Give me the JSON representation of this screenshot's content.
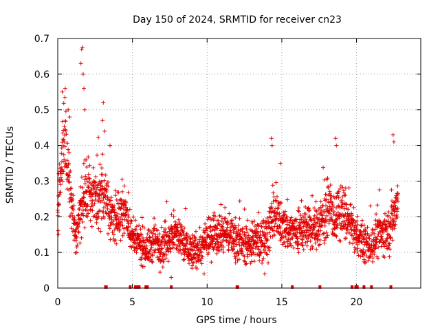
{
  "chart_data": {
    "type": "scatter",
    "title": "Day 150 of 2024, SRMTID for receiver cn23",
    "xlabel": "GPS time / hours",
    "ylabel": "SRMTID / TECUs",
    "xlim": [
      0,
      24.3
    ],
    "ylim": [
      0,
      0.7
    ],
    "x_ticks": [
      0,
      5,
      10,
      15,
      20
    ],
    "x_tick_labels": [
      "0",
      "5",
      "10",
      "15",
      "20"
    ],
    "y_ticks": [
      0,
      0.1,
      0.2,
      0.3,
      0.4,
      0.5,
      0.6,
      0.7
    ],
    "y_tick_labels": [
      "0",
      "0.1",
      "0.2",
      "0.3",
      "0.4",
      "0.5",
      "0.6",
      "0.7"
    ],
    "grid": true,
    "marker": "+",
    "color": "#e00000",
    "series": [
      {
        "name": "SRMTID",
        "envelope_hours": [
          0,
          0.25,
          0.5,
          0.75,
          1.0,
          1.25,
          1.5,
          1.75,
          2.0,
          2.5,
          3.0,
          3.25,
          3.5,
          4.0,
          4.5,
          5.0,
          5.5,
          6.0,
          6.5,
          7.0,
          7.5,
          8.0,
          8.5,
          9.0,
          9.5,
          10.0,
          10.5,
          11.0,
          11.5,
          12.0,
          12.5,
          13.0,
          13.5,
          14.0,
          14.25,
          14.5,
          15.0,
          15.5,
          16.0,
          16.5,
          17.0,
          17.5,
          18.0,
          18.5,
          18.75,
          19.0,
          19.5,
          20.0,
          20.5,
          21.0,
          21.5,
          22.0,
          22.5,
          22.75
        ],
        "typical": [
          0.2,
          0.35,
          0.4,
          0.3,
          0.22,
          0.15,
          0.2,
          0.26,
          0.27,
          0.26,
          0.25,
          0.27,
          0.2,
          0.2,
          0.22,
          0.14,
          0.12,
          0.11,
          0.13,
          0.12,
          0.14,
          0.15,
          0.12,
          0.1,
          0.11,
          0.13,
          0.16,
          0.16,
          0.15,
          0.14,
          0.12,
          0.13,
          0.13,
          0.15,
          0.18,
          0.2,
          0.18,
          0.16,
          0.16,
          0.17,
          0.16,
          0.18,
          0.22,
          0.2,
          0.2,
          0.22,
          0.18,
          0.15,
          0.12,
          0.12,
          0.15,
          0.15,
          0.2,
          0.25
        ],
        "spread": [
          0.05,
          0.08,
          0.09,
          0.07,
          0.06,
          0.05,
          0.07,
          0.08,
          0.07,
          0.06,
          0.07,
          0.07,
          0.05,
          0.05,
          0.05,
          0.04,
          0.04,
          0.04,
          0.05,
          0.05,
          0.04,
          0.05,
          0.05,
          0.04,
          0.04,
          0.04,
          0.05,
          0.05,
          0.04,
          0.05,
          0.04,
          0.05,
          0.05,
          0.05,
          0.06,
          0.05,
          0.05,
          0.05,
          0.05,
          0.05,
          0.05,
          0.06,
          0.06,
          0.06,
          0.06,
          0.06,
          0.05,
          0.04,
          0.04,
          0.04,
          0.05,
          0.05,
          0.06,
          0.06
        ],
        "samples_per_hour": 100,
        "x_start": 0,
        "x_end": 22.8,
        "peaks": [
          {
            "x": 0.3,
            "y": 0.55
          },
          {
            "x": 0.5,
            "y": 0.56
          },
          {
            "x": 0.7,
            "y": 0.5
          },
          {
            "x": 0.8,
            "y": 0.48
          },
          {
            "x": 1.6,
            "y": 0.67
          },
          {
            "x": 1.65,
            "y": 0.675
          },
          {
            "x": 1.55,
            "y": 0.63
          },
          {
            "x": 1.7,
            "y": 0.6
          },
          {
            "x": 1.75,
            "y": 0.56
          },
          {
            "x": 1.8,
            "y": 0.5
          },
          {
            "x": 3.05,
            "y": 0.52
          },
          {
            "x": 3.0,
            "y": 0.47
          },
          {
            "x": 3.15,
            "y": 0.44
          },
          {
            "x": 3.5,
            "y": 0.4
          },
          {
            "x": 14.3,
            "y": 0.42
          },
          {
            "x": 14.35,
            "y": 0.4
          },
          {
            "x": 14.9,
            "y": 0.35
          },
          {
            "x": 18.6,
            "y": 0.42
          },
          {
            "x": 18.65,
            "y": 0.4
          },
          {
            "x": 22.45,
            "y": 0.43
          },
          {
            "x": 22.5,
            "y": 0.41
          },
          {
            "x": 7.6,
            "y": 0.03
          },
          {
            "x": 9.8,
            "y": 0.04
          },
          {
            "x": 13.85,
            "y": 0.04
          }
        ]
      }
    ],
    "data_gaps_hours": [
      3.2,
      3.25,
      4.85,
      5.2,
      5.3,
      5.4,
      5.45,
      5.9,
      6.0,
      7.6,
      12.0,
      12.05,
      15.7,
      17.55,
      19.7,
      19.95,
      20.05,
      20.5,
      21.0,
      22.3
    ]
  }
}
